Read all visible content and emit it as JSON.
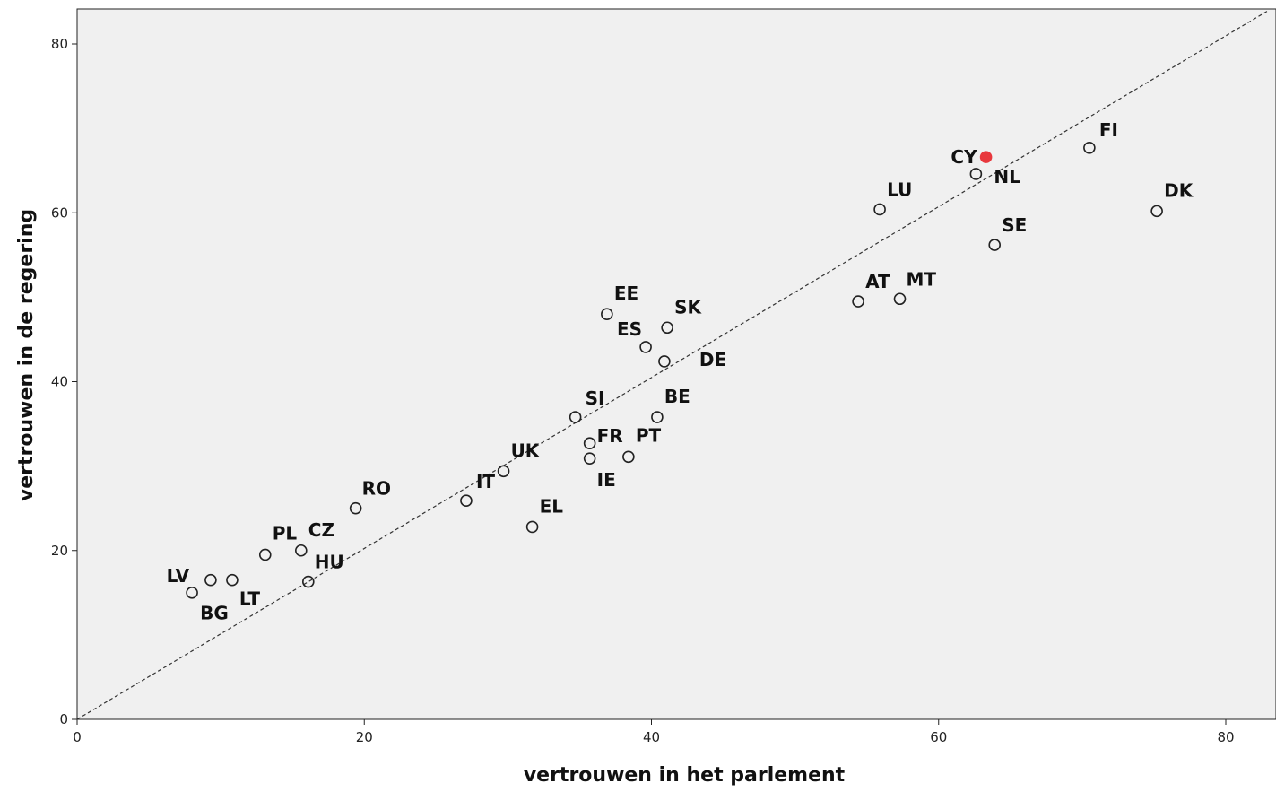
{
  "chart_data": {
    "type": "scatter",
    "title": "",
    "xlabel": "vertrouwen in het parlement",
    "ylabel": "vertrouwen in de regering",
    "xlim": [
      0,
      83
    ],
    "ylim": [
      0,
      84
    ],
    "xticks": [
      0,
      20,
      40,
      60,
      80
    ],
    "yticks": [
      0,
      20,
      40,
      60,
      80
    ],
    "grid": false,
    "reference_line": {
      "style": "dashed",
      "from": [
        0,
        0
      ],
      "to": [
        83,
        84
      ]
    },
    "colors": {
      "plot_background": "#f0f0f0",
      "marker_stroke": "#222222",
      "highlight": "#e8383d"
    },
    "points": [
      {
        "label": "LV",
        "x": 8.0,
        "y": 15.0,
        "highlight": false
      },
      {
        "label": "BG",
        "x": 9.3,
        "y": 16.5,
        "highlight": false
      },
      {
        "label": "LT",
        "x": 10.8,
        "y": 16.5,
        "highlight": false
      },
      {
        "label": "PL",
        "x": 13.1,
        "y": 19.5,
        "highlight": false
      },
      {
        "label": "CZ",
        "x": 15.6,
        "y": 20.0,
        "highlight": false
      },
      {
        "label": "HU",
        "x": 16.1,
        "y": 16.3,
        "highlight": false
      },
      {
        "label": "RO",
        "x": 19.4,
        "y": 25.0,
        "highlight": false
      },
      {
        "label": "IT",
        "x": 27.1,
        "y": 25.9,
        "highlight": false
      },
      {
        "label": "UK",
        "x": 29.7,
        "y": 29.4,
        "highlight": false
      },
      {
        "label": "EL",
        "x": 31.7,
        "y": 22.8,
        "highlight": false
      },
      {
        "label": "SI",
        "x": 34.7,
        "y": 35.8,
        "highlight": false
      },
      {
        "label": "FR",
        "x": 35.7,
        "y": 32.7,
        "highlight": false
      },
      {
        "label": "IE",
        "x": 35.7,
        "y": 30.9,
        "highlight": false
      },
      {
        "label": "EE",
        "x": 36.9,
        "y": 48.0,
        "highlight": false
      },
      {
        "label": "PT",
        "x": 38.4,
        "y": 31.1,
        "highlight": false
      },
      {
        "label": "ES",
        "x": 39.6,
        "y": 44.1,
        "highlight": false
      },
      {
        "label": "BE",
        "x": 40.4,
        "y": 35.8,
        "highlight": false
      },
      {
        "label": "DE",
        "x": 40.9,
        "y": 42.4,
        "highlight": false
      },
      {
        "label": "SK",
        "x": 41.1,
        "y": 46.4,
        "highlight": false
      },
      {
        "label": "AT",
        "x": 54.4,
        "y": 49.5,
        "highlight": false
      },
      {
        "label": "LU",
        "x": 55.9,
        "y": 60.4,
        "highlight": false
      },
      {
        "label": "MT",
        "x": 57.3,
        "y": 49.8,
        "highlight": false
      },
      {
        "label": "NL",
        "x": 62.6,
        "y": 64.6,
        "highlight": false
      },
      {
        "label": "CY",
        "x": 63.3,
        "y": 66.6,
        "highlight": true
      },
      {
        "label": "SE",
        "x": 63.9,
        "y": 56.2,
        "highlight": false
      },
      {
        "label": "FI",
        "x": 70.5,
        "y": 67.7,
        "highlight": false
      },
      {
        "label": "DK",
        "x": 75.2,
        "y": 60.2,
        "highlight": false
      }
    ]
  }
}
